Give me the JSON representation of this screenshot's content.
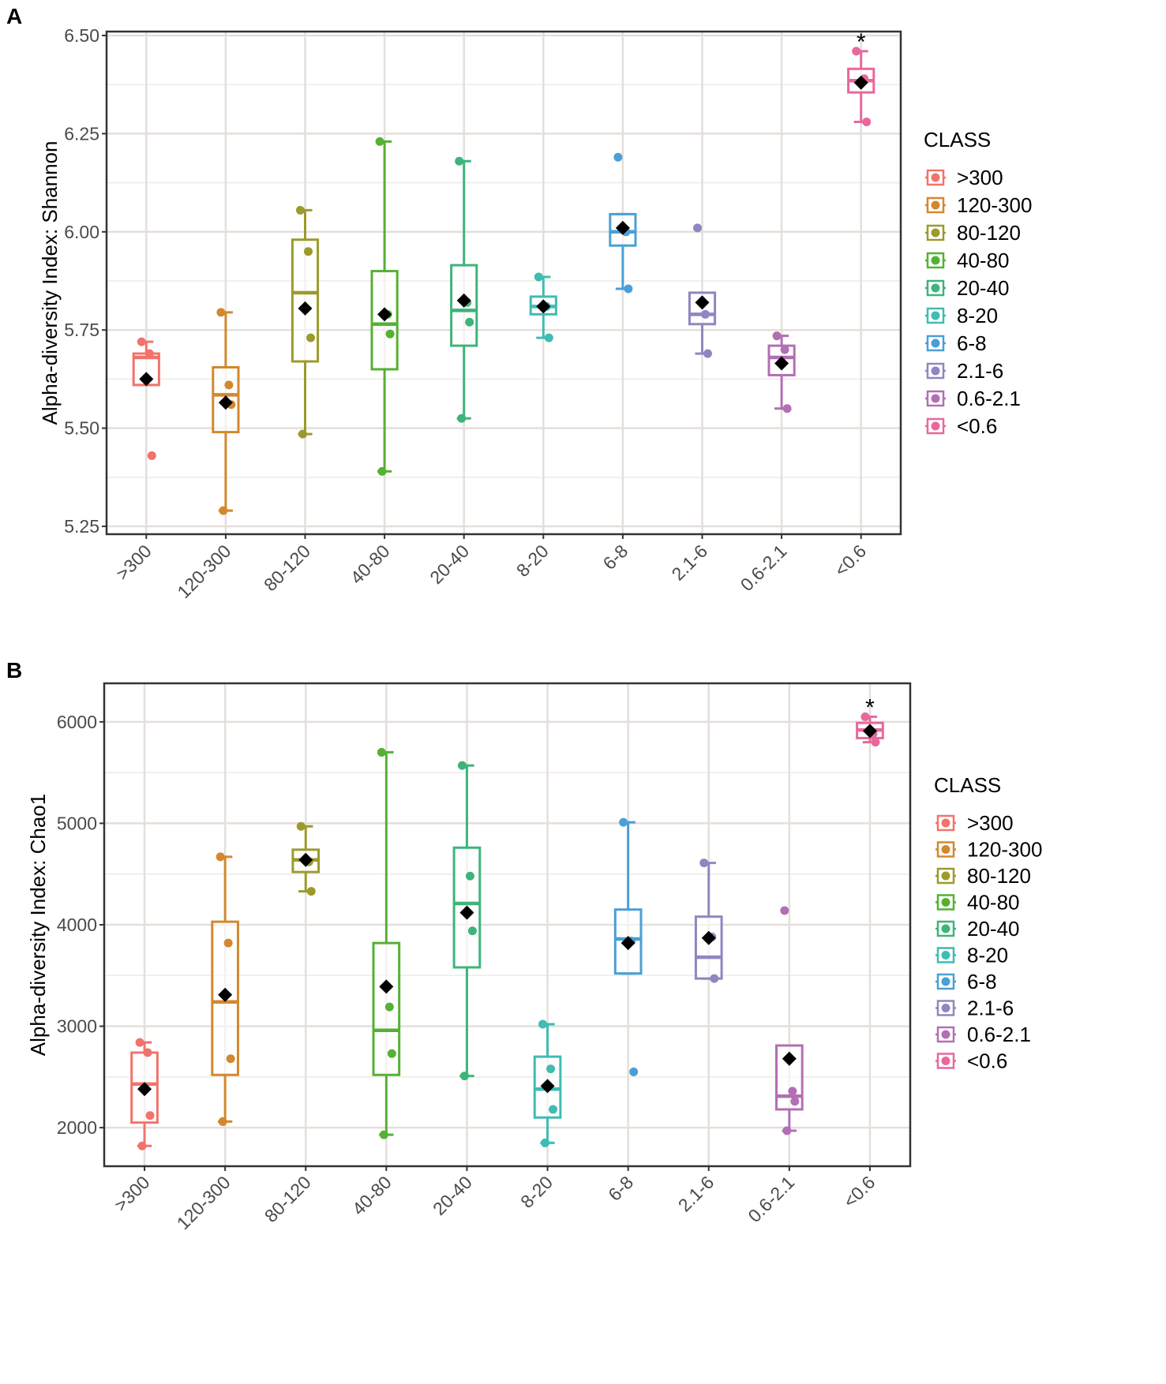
{
  "chart_data": [
    {
      "panel": "A",
      "type": "box",
      "ylabel": "Alpha-diversity Index: Shannon",
      "xlabel": "",
      "ylim": [
        5.23,
        6.51
      ],
      "yticks": [
        5.25,
        5.5,
        5.75,
        6.0,
        6.25,
        6.5
      ],
      "ytick_labels": [
        "5.25",
        "5.50",
        "5.75",
        "6.00",
        "6.25",
        "6.50"
      ],
      "grid": true,
      "categories": [
        ">300",
        "120-300",
        "80-120",
        "40-80",
        "20-40",
        "8-20",
        "6-8",
        "2.1-6",
        "0.6-2.1",
        "<0.6"
      ],
      "colors": [
        "#F1736B",
        "#D3882E",
        "#9C9A2C",
        "#55B134",
        "#3EB47A",
        "#3FBCB3",
        "#4A9FD6",
        "#8E87C2",
        "#B36FB3",
        "#E8689D"
      ],
      "boxes": [
        {
          "whisker_low": 5.61,
          "q1": 5.61,
          "median": 5.68,
          "q3": 5.69,
          "whisker_high": 5.72,
          "mean": 5.625,
          "points": [
            5.72,
            5.69,
            5.43
          ],
          "significant": false
        },
        {
          "whisker_low": 5.29,
          "q1": 5.49,
          "median": 5.585,
          "q3": 5.655,
          "whisker_high": 5.795,
          "mean": 5.565,
          "points": [
            5.795,
            5.61,
            5.56,
            5.29
          ],
          "significant": false
        },
        {
          "whisker_low": 5.485,
          "q1": 5.67,
          "median": 5.845,
          "q3": 5.98,
          "whisker_high": 6.055,
          "mean": 5.805,
          "points": [
            6.055,
            5.95,
            5.73,
            5.485
          ],
          "significant": false
        },
        {
          "whisker_low": 5.39,
          "q1": 5.65,
          "median": 5.765,
          "q3": 5.9,
          "whisker_high": 6.23,
          "mean": 5.79,
          "points": [
            6.23,
            5.79,
            5.74,
            5.39
          ],
          "significant": false
        },
        {
          "whisker_low": 5.525,
          "q1": 5.71,
          "median": 5.8,
          "q3": 5.915,
          "whisker_high": 6.18,
          "mean": 5.825,
          "points": [
            6.18,
            5.82,
            5.77,
            5.525
          ],
          "significant": false
        },
        {
          "whisker_low": 5.73,
          "q1": 5.79,
          "median": 5.81,
          "q3": 5.835,
          "whisker_high": 5.885,
          "mean": 5.81,
          "points": [
            5.885,
            5.81,
            5.73
          ],
          "significant": false
        },
        {
          "whisker_low": 5.855,
          "q1": 5.965,
          "median": 6.0,
          "q3": 6.045,
          "whisker_high": 6.045,
          "mean": 6.01,
          "points": [
            6.19,
            6.0,
            5.855
          ],
          "significant": false
        },
        {
          "whisker_low": 5.69,
          "q1": 5.765,
          "median": 5.79,
          "q3": 5.845,
          "whisker_high": 5.845,
          "mean": 5.82,
          "points": [
            6.01,
            5.79,
            5.69
          ],
          "significant": false
        },
        {
          "whisker_low": 5.55,
          "q1": 5.635,
          "median": 5.68,
          "q3": 5.71,
          "whisker_high": 5.735,
          "mean": 5.665,
          "points": [
            5.735,
            5.7,
            5.55
          ],
          "significant": false
        },
        {
          "whisker_low": 6.28,
          "q1": 6.355,
          "median": 6.385,
          "q3": 6.415,
          "whisker_high": 6.46,
          "mean": 6.38,
          "points": [
            6.46,
            6.39,
            6.28
          ],
          "significant": true
        }
      ],
      "annotation": "*",
      "legend": {
        "title": "CLASS",
        "position": "right",
        "entries": [
          ">300",
          "120-300",
          "80-120",
          "40-80",
          "20-40",
          "8-20",
          "6-8",
          "2.1-6",
          "0.6-2.1",
          "<0.6"
        ]
      }
    },
    {
      "panel": "B",
      "type": "box",
      "ylabel": "Alpha-diversity Index: Chao1",
      "xlabel": "",
      "ylim": [
        1620,
        6380
      ],
      "yticks": [
        2000,
        3000,
        4000,
        5000,
        6000
      ],
      "ytick_labels": [
        "2000",
        "3000",
        "4000",
        "5000",
        "6000"
      ],
      "grid": true,
      "categories": [
        ">300",
        "120-300",
        "80-120",
        "40-80",
        "20-40",
        "8-20",
        "6-8",
        "2.1-6",
        "0.6-2.1",
        "<0.6"
      ],
      "colors": [
        "#F1736B",
        "#D3882E",
        "#9C9A2C",
        "#55B134",
        "#3EB47A",
        "#3FBCB3",
        "#4A9FD6",
        "#8E87C2",
        "#B36FB3",
        "#E8689D"
      ],
      "boxes": [
        {
          "whisker_low": 1820,
          "q1": 2050,
          "median": 2430,
          "q3": 2740,
          "whisker_high": 2840,
          "mean": 2380,
          "points": [
            2840,
            2740,
            2120,
            1820
          ],
          "significant": false
        },
        {
          "whisker_low": 2060,
          "q1": 2520,
          "median": 3240,
          "q3": 4030,
          "whisker_high": 4670,
          "mean": 3310,
          "points": [
            4670,
            3820,
            2680,
            2060
          ],
          "significant": false
        },
        {
          "whisker_low": 4330,
          "q1": 4520,
          "median": 4640,
          "q3": 4740,
          "whisker_high": 4970,
          "mean": 4640,
          "points": [
            4970,
            4620,
            4330
          ],
          "significant": false
        },
        {
          "whisker_low": 1930,
          "q1": 2520,
          "median": 2960,
          "q3": 3820,
          "whisker_high": 5700,
          "mean": 3390,
          "points": [
            5700,
            3190,
            2730,
            1930
          ],
          "significant": false
        },
        {
          "whisker_low": 2510,
          "q1": 3580,
          "median": 4210,
          "q3": 4760,
          "whisker_high": 5570,
          "mean": 4120,
          "points": [
            5570,
            4480,
            3940,
            2510
          ],
          "significant": false
        },
        {
          "whisker_low": 1850,
          "q1": 2100,
          "median": 2380,
          "q3": 2700,
          "whisker_high": 3020,
          "mean": 2410,
          "points": [
            3020,
            2580,
            2180,
            1850
          ],
          "significant": false
        },
        {
          "whisker_low": 3520,
          "q1": 3520,
          "median": 3860,
          "q3": 4150,
          "whisker_high": 5010,
          "mean": 3820,
          "points": [
            5010,
            3840,
            2550
          ],
          "significant": false
        },
        {
          "whisker_low": 3470,
          "q1": 3470,
          "median": 3680,
          "q3": 4080,
          "whisker_high": 4610,
          "mean": 3870,
          "points": [
            4610,
            3880,
            3470
          ],
          "significant": false
        },
        {
          "whisker_low": 1970,
          "q1": 2180,
          "median": 2310,
          "q3": 2810,
          "whisker_high": 2810,
          "mean": 2680,
          "points": [
            4140,
            2360,
            2260,
            1970
          ],
          "significant": false
        },
        {
          "whisker_low": 5800,
          "q1": 5840,
          "median": 5920,
          "q3": 5990,
          "whisker_high": 6050,
          "mean": 5910,
          "points": [
            6050,
            5880,
            5800
          ],
          "significant": true
        }
      ],
      "annotation": "*",
      "legend": {
        "title": "CLASS",
        "position": "right",
        "entries": [
          ">300",
          "120-300",
          "80-120",
          "40-80",
          "20-40",
          "8-20",
          "6-8",
          "2.1-6",
          "0.6-2.1",
          "<0.6"
        ]
      }
    }
  ]
}
